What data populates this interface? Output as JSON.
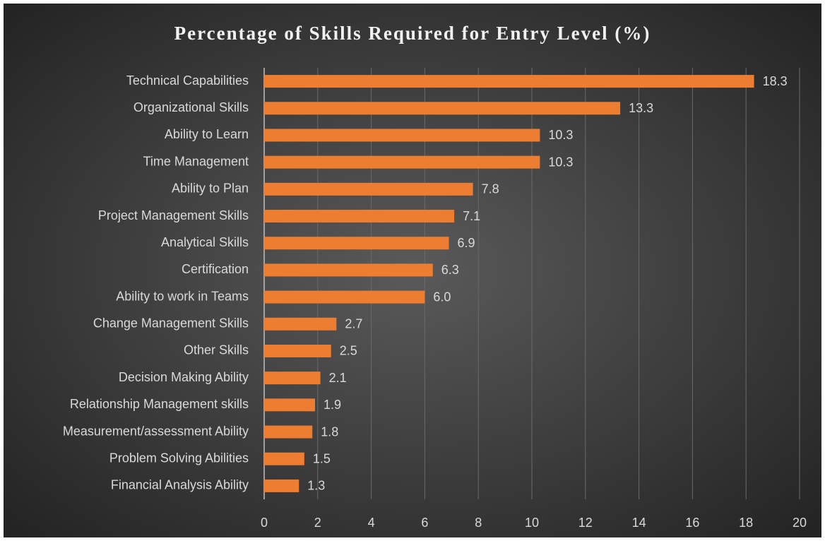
{
  "chart_data": {
    "type": "bar",
    "orientation": "horizontal",
    "title": "Percentage of Skills Required for Entry Level (%)",
    "categories": [
      "Technical Capabilities",
      "Organizational Skills",
      "Ability to Learn",
      "Time Management",
      "Ability to Plan",
      "Project Management Skills",
      "Analytical Skills",
      "Certification",
      "Ability to work in Teams",
      "Change Management Skills",
      "Other Skills",
      "Decision Making Ability",
      "Relationship Management skills",
      "Measurement/assessment Ability",
      "Problem Solving Abilities",
      "Financial Analysis Ability"
    ],
    "values": [
      18.3,
      13.3,
      10.3,
      10.3,
      7.8,
      7.1,
      6.9,
      6.3,
      6.0,
      2.7,
      2.5,
      2.1,
      1.9,
      1.8,
      1.5,
      1.3
    ],
    "value_labels": [
      "18.3",
      "13.3",
      "10.3",
      "10.3",
      "7.8",
      "7.1",
      "6.9",
      "6.3",
      "6.0",
      "2.7",
      "2.5",
      "2.1",
      "1.9",
      "1.8",
      "1.5",
      "1.3"
    ],
    "color": "#ed7d31",
    "xlim": [
      0,
      20
    ],
    "xticks": [
      0,
      2,
      4,
      6,
      8,
      10,
      12,
      14,
      16,
      18,
      20
    ],
    "grid": true
  }
}
